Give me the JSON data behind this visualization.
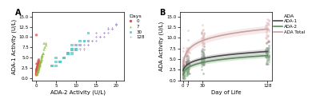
{
  "panel_a": {
    "title": "A",
    "xlabel": "ADA-2 Activity (U/L)",
    "ylabel": "ADA-1 Activity (U/L)",
    "xlim": [
      -1,
      22
    ],
    "ylim": [
      -0.5,
      16
    ],
    "days": [
      0,
      7,
      30,
      128
    ],
    "colors": [
      "#d9534f",
      "#8fbc45",
      "#5bc8c8",
      "#b8a0d8"
    ],
    "markers": [
      "o",
      "^",
      "s",
      "P"
    ],
    "legend_title": "Days",
    "data_day0": {
      "ada2": [
        0.1,
        0.2,
        0.3,
        0.1,
        0.2,
        0.4,
        0.5,
        0.3,
        0.2,
        0.1,
        0.6,
        0.5,
        0.3,
        0.4,
        0.2,
        0.1,
        0.8,
        0.5,
        0.3,
        0.7,
        0.4,
        0.2,
        0.3,
        0.5,
        0.1,
        0.2,
        0.4,
        0.6,
        0.3,
        0.8,
        0.5,
        0.2,
        0.1,
        0.3,
        0.4,
        0.6,
        0.5,
        0.2,
        0.3,
        0.1,
        0.7,
        0.4,
        0.3,
        0.2,
        0.5,
        0.6,
        0.3,
        0.1
      ],
      "ada1": [
        10.5,
        1.5,
        2.0,
        1.2,
        3.5,
        2.5,
        3.0,
        2.8,
        1.8,
        2.2,
        4.0,
        3.5,
        2.5,
        1.5,
        2.0,
        1.8,
        3.2,
        2.8,
        2.0,
        3.8,
        2.2,
        1.5,
        2.5,
        3.0,
        1.2,
        2.0,
        3.5,
        4.2,
        1.8,
        3.5,
        2.5,
        1.2,
        1.0,
        1.8,
        2.5,
        3.0,
        2.8,
        1.5,
        2.0,
        1.0,
        4.5,
        2.5,
        2.0,
        1.5,
        3.0,
        3.5,
        2.0,
        0.8
      ]
    },
    "data_day7": {
      "ada2": [
        0.5,
        1.0,
        1.5,
        2.0,
        0.8,
        1.2,
        0.3,
        0.6,
        0.9,
        1.4,
        2.5,
        0.7,
        1.1,
        1.8,
        0.4,
        1.6,
        0.2,
        0.8,
        1.3,
        2.0,
        0.5,
        1.0,
        0.7,
        1.5,
        2.2,
        0.3,
        0.6,
        1.0,
        1.8,
        0.4,
        0.9,
        1.3,
        2.5,
        0.7,
        1.2,
        0.5,
        1.0,
        1.5,
        0.3,
        0.8
      ],
      "ada1": [
        1.5,
        3.0,
        4.5,
        8.5,
        2.5,
        4.0,
        1.0,
        2.0,
        3.5,
        5.0,
        8.0,
        2.2,
        3.8,
        6.0,
        1.5,
        5.5,
        1.2,
        2.8,
        4.2,
        7.0,
        1.8,
        3.2,
        2.5,
        5.2,
        7.5,
        1.0,
        2.0,
        3.5,
        6.0,
        1.5,
        3.0,
        4.5,
        8.5,
        2.5,
        4.0,
        1.8,
        3.5,
        5.5,
        1.2,
        3.0
      ]
    },
    "data_day30": {
      "ada2": [
        5,
        7,
        9,
        11,
        6,
        8,
        10,
        13,
        4,
        7,
        9,
        12,
        6,
        8,
        5,
        10,
        7,
        9,
        6,
        11,
        8,
        13,
        5,
        7,
        9,
        4,
        6,
        8,
        10,
        12
      ],
      "ada1": [
        5,
        5,
        8,
        9,
        4,
        6,
        8,
        11,
        3,
        5,
        7,
        9,
        4,
        6,
        4,
        7,
        5,
        7,
        4,
        8,
        6,
        9,
        3,
        5,
        6,
        3,
        4,
        6,
        7,
        9
      ]
    },
    "data_day128": {
      "ada2": [
        10,
        13,
        15,
        18,
        20,
        11,
        14,
        16,
        19,
        12,
        15,
        17,
        20,
        13,
        16,
        18,
        10,
        14,
        17,
        19,
        11,
        13,
        16,
        18,
        20,
        12,
        15,
        17,
        19
      ],
      "ada1": [
        8,
        9,
        11,
        12,
        13,
        7,
        9,
        10,
        12,
        8,
        10,
        11,
        13,
        8,
        10,
        12,
        7,
        9,
        10,
        12,
        8,
        8,
        10,
        11,
        13,
        7,
        9,
        11,
        12
      ]
    }
  },
  "panel_b": {
    "title": "B",
    "xlabel": "Day of Life",
    "ylabel": "ADA Activity (U/L)",
    "xlim": [
      -5,
      135
    ],
    "ylim": [
      0,
      16
    ],
    "yticks": [
      0.0,
      2.5,
      5.0,
      7.5,
      10.0,
      12.5,
      15.0
    ],
    "xticks": [
      0,
      7,
      30,
      128
    ],
    "xticklabels": [
      "0",
      "7",
      "30",
      "128"
    ],
    "colors_ada1": "#4a4a4a",
    "colors_ada2": "#5a8a5a",
    "colors_total": "#c8a0a0",
    "scatter_ada1": "#888888",
    "scatter_ada2": "#88aa88",
    "scatter_total": "#e0b8b8",
    "legend_title": "ADA",
    "legend_items": [
      "ADA-1",
      "ADA-2",
      "ADA Total"
    ],
    "days_scatter": [
      0,
      7,
      30,
      128
    ],
    "ada1_bases": [
      2.5,
      3.5,
      5.5,
      6.5
    ],
    "ada2_bases": [
      1.5,
      2.5,
      4.5,
      5.5
    ],
    "total_bases": [
      4.0,
      6.0,
      10.0,
      12.0
    ]
  }
}
